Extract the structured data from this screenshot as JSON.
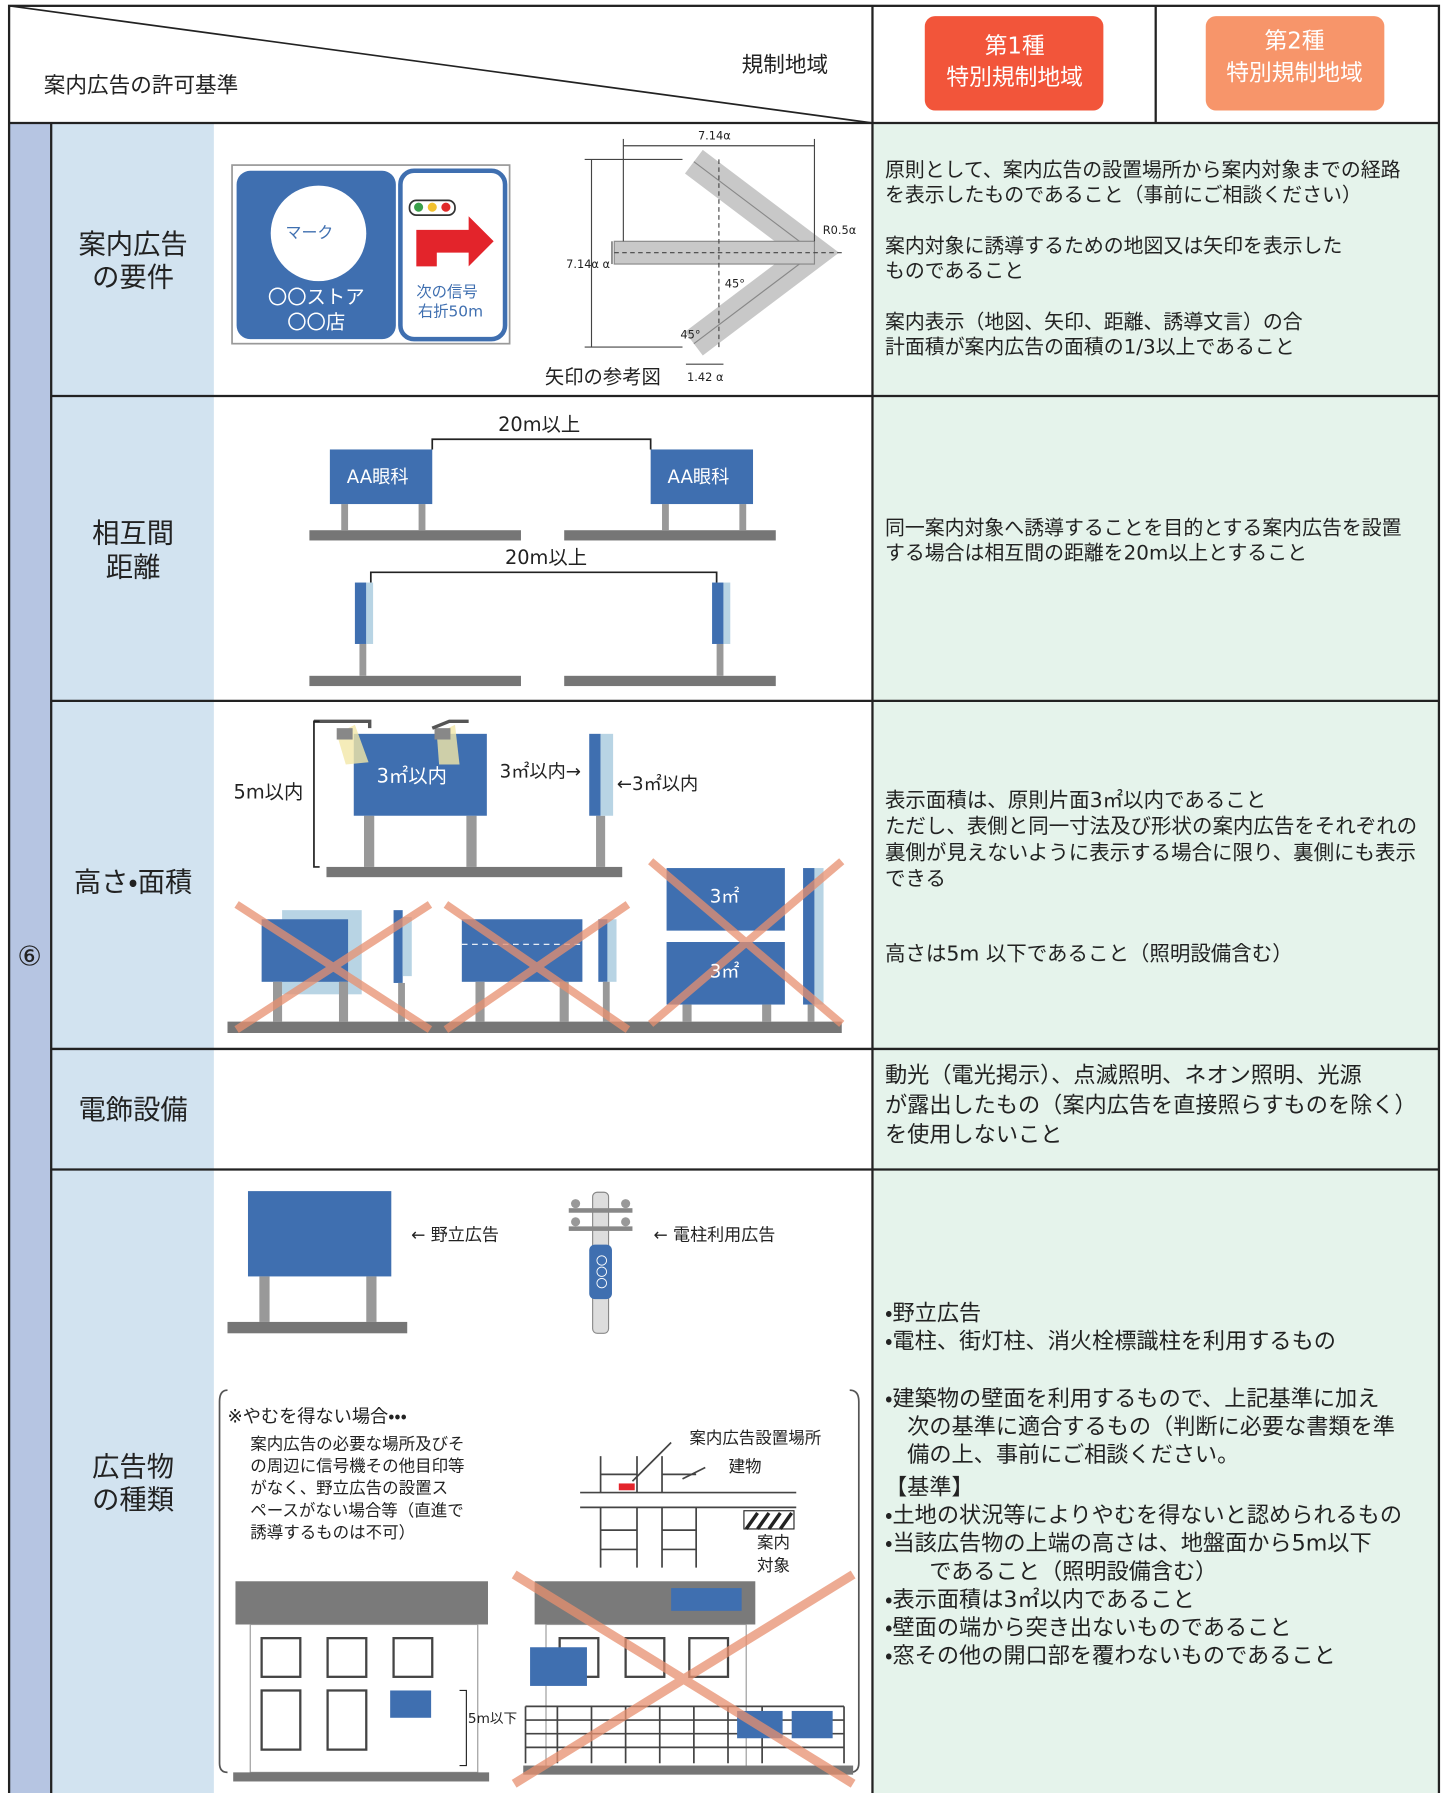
{
  "header": {
    "title": "案内広告の許可基準",
    "region_label": "規制地域",
    "zones": [
      [
        "第1種",
        "特別規制地域"
      ],
      [
        "第2種",
        "特別規制地域"
      ]
    ]
  },
  "section": "⑥",
  "rows": [
    {
      "label": [
        "案内広告",
        "の要件"
      ],
      "figure": {
        "mark": "マーク",
        "store": [
          "〇〇ストア",
          "〇〇店"
        ],
        "signal": [
          "次の信号",
          "右折50m"
        ],
        "caption": "矢印の参考図",
        "dims": [
          "7.14α",
          "7.14α α",
          "R0.5α",
          "45°",
          "45°",
          "1.42 α"
        ]
      },
      "text": [
        [
          "原則として、案内広告の設置場所から案内対象までの経路",
          "を表示したものであること（事前にご相談ください）"
        ],
        [
          "案内対象に誘導するための地図又は矢印を表示した",
          "ものであること"
        ],
        [
          "案内表示（地図、矢印、距離、誘導文言）の合",
          "計面積が案内広告の面積の1/3以上であること"
        ]
      ]
    },
    {
      "label": [
        "相互間",
        "距離"
      ],
      "figure": {
        "distance": [
          "20m以上",
          "20m以上"
        ],
        "sign": [
          "AA眼科",
          "AA眼科"
        ]
      },
      "text": [
        [
          "同一案内対象へ誘導することを目的とする案内広告を設置",
          "する場合は相互間の距離を20m以上とすること"
        ]
      ]
    },
    {
      "label": [
        "高さ・面積"
      ],
      "figure": {
        "height": "5m以内",
        "area": "3㎡以内",
        "area_front": "3㎡以内→",
        "area_side": "←3㎡以内",
        "stack": [
          "3㎡",
          "3㎡"
        ]
      },
      "text": [
        [
          "表示面積は、原則片面3㎡以内であること",
          "ただし、表側と同一寸法及び形状の案内広告をそれぞれの",
          "裏側が見えないように表示する場合に限り、裏側にも表示",
          "できる"
        ],
        [
          "高さは5m 以下であること（照明設備含む）"
        ]
      ]
    },
    {
      "label": [
        "電飾設備"
      ],
      "text": [
        [
          "動光（電光掲示）、点滅照明、ネオン照明、光源",
          "が露出したもの（案内広告を直接照らすものを除く）",
          "を使用しないこと"
        ]
      ]
    },
    {
      "label": [
        "広告物",
        "の種類"
      ],
      "figure": {
        "types": [
          "← 野立広告",
          "← 電柱利用広告"
        ],
        "pole_text": "〇〇〇",
        "exception_title": "※やむを得ない場合・・・",
        "exception": [
          "案内広告の必要な場所及びそ",
          "の周辺に信号機その他目印等",
          "がなく、野立広告の設置ス",
          "ペースがない場合等（直進で",
          "誘導するものは不可）"
        ],
        "map": [
          "案内広告設置場所",
          "建物",
          "案内",
          "対象"
        ],
        "height": "5m以下"
      },
      "text": [
        [
          "・野立広告",
          "・電柱、街灯柱、消火栓標識柱を利用するもの"
        ],
        [
          "・建築物の壁面を利用するもので、上記基準に加え",
          "　次の基準に適合するもの（判断に必要な書類を準",
          "　備の上、事前にご相談ください。"
        ],
        [
          "【基準】",
          "・土地の状況等によりやむを得ないと認められるもの",
          "・当該広告物の上端の高さは、地盤面から5m以下",
          "　　であること（照明設備含む）",
          "・表示面積は3㎡以内であること",
          "・壁面の端から突き出ないものであること",
          "・窓その他の開口部を覆わないものであること"
        ]
      ]
    }
  ]
}
